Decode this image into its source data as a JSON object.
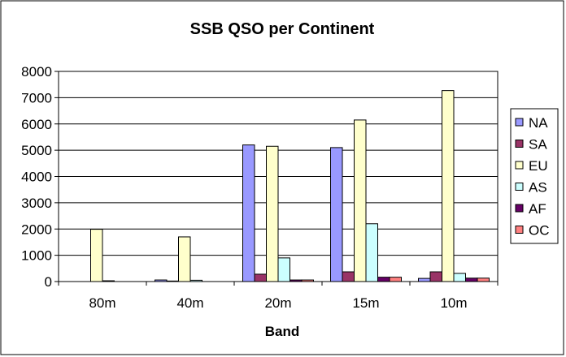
{
  "chart_data": {
    "type": "bar",
    "title": "SSB QSO per Continent",
    "xlabel": "Band",
    "ylabel": "",
    "ylim": [
      0,
      8000
    ],
    "yticks": [
      0,
      1000,
      2000,
      3000,
      4000,
      5000,
      6000,
      7000,
      8000
    ],
    "grid": true,
    "legend_position": "right",
    "categories": [
      "80m",
      "40m",
      "20m",
      "15m",
      "10m"
    ],
    "series": [
      {
        "name": "NA",
        "color": "#9999ff",
        "values": [
          0,
          60,
          5200,
          5100,
          120
        ]
      },
      {
        "name": "SA",
        "color": "#993366",
        "values": [
          0,
          20,
          280,
          370,
          370
        ]
      },
      {
        "name": "EU",
        "color": "#ffffcc",
        "values": [
          1990,
          1700,
          5150,
          6150,
          7270
        ]
      },
      {
        "name": "AS",
        "color": "#ccffff",
        "values": [
          30,
          50,
          900,
          2200,
          310
        ]
      },
      {
        "name": "AF",
        "color": "#660066",
        "values": [
          0,
          0,
          60,
          165,
          130
        ]
      },
      {
        "name": "OC",
        "color": "#ff8080",
        "values": [
          0,
          0,
          60,
          165,
          130
        ]
      }
    ]
  }
}
